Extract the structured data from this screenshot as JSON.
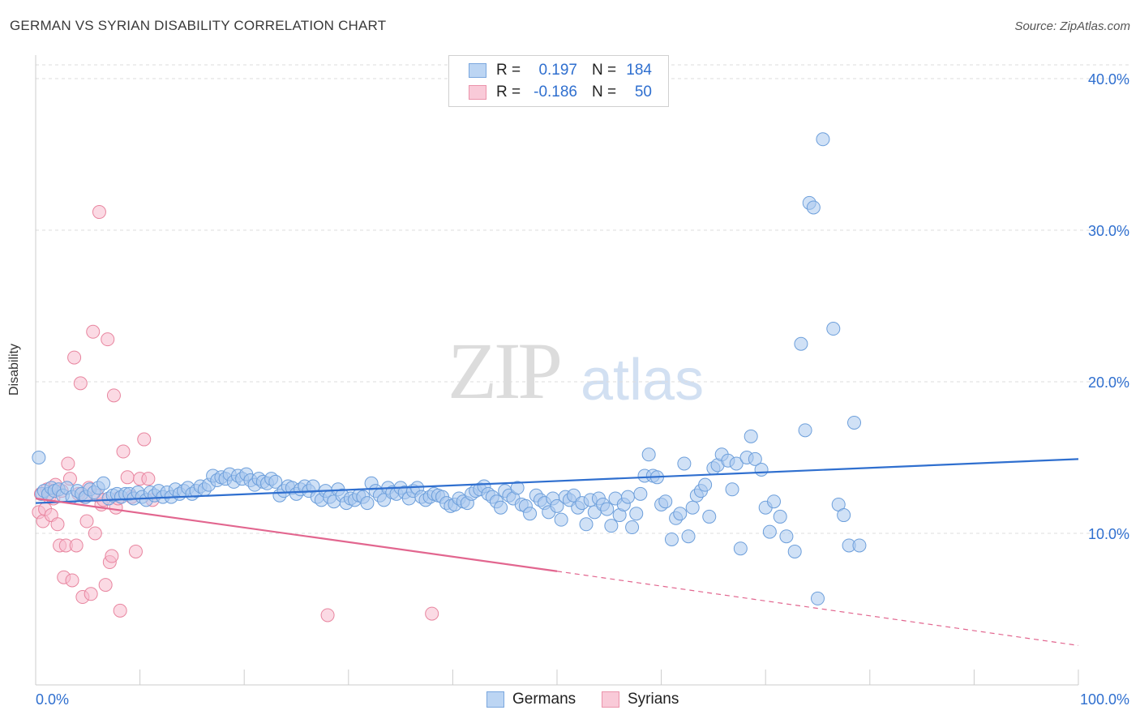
{
  "chart_data": {
    "type": "scatter",
    "title": "GERMAN VS SYRIAN DISABILITY CORRELATION CHART",
    "source": "Source: ZipAtlas.com",
    "ylabel": "Disability",
    "xlim": [
      0,
      100
    ],
    "ylim": [
      0,
      40
    ],
    "x_tick_labels": [
      "0.0%",
      "100.0%"
    ],
    "y_ticks": [
      10,
      20,
      30,
      40
    ],
    "y_tick_labels": [
      "10.0%",
      "20.0%",
      "30.0%",
      "40.0%"
    ],
    "grid": "horizontal dashed",
    "legend_position": "top-center",
    "colors": {
      "germans_fill": "#a9c8ee",
      "germans_stroke": "#6d9fdb",
      "germans_line": "#2f6fcf",
      "syrians_fill": "#f7bccd",
      "syrians_stroke": "#e8859f",
      "syrians_line": "#e2668f"
    },
    "series": [
      {
        "name": "Germans",
        "r_label": "R =",
        "r": "0.197",
        "n_label": "N =",
        "n": "184",
        "trend": {
          "x0": 0,
          "y0": 12.0,
          "x1": 100,
          "y1": 14.9
        },
        "points": [
          [
            0.3,
            15.0
          ],
          [
            0.6,
            12.6
          ],
          [
            0.8,
            12.8
          ],
          [
            1.2,
            12.6
          ],
          [
            1.5,
            13.0
          ],
          [
            1.8,
            12.8
          ],
          [
            2.2,
            12.9
          ],
          [
            2.6,
            12.5
          ],
          [
            3.0,
            13.0
          ],
          [
            3.5,
            12.4
          ],
          [
            4.0,
            12.8
          ],
          [
            4.4,
            12.6
          ],
          [
            4.8,
            12.4
          ],
          [
            5.2,
            12.9
          ],
          [
            5.6,
            12.7
          ],
          [
            6.0,
            13.0
          ],
          [
            6.5,
            13.3
          ],
          [
            7.0,
            12.3
          ],
          [
            7.4,
            12.5
          ],
          [
            7.8,
            12.6
          ],
          [
            8.2,
            12.4
          ],
          [
            8.6,
            12.6
          ],
          [
            9.0,
            12.6
          ],
          [
            9.4,
            12.3
          ],
          [
            9.8,
            12.7
          ],
          [
            10.2,
            12.4
          ],
          [
            10.6,
            12.2
          ],
          [
            11.0,
            12.7
          ],
          [
            11.4,
            12.5
          ],
          [
            11.8,
            12.8
          ],
          [
            12.2,
            12.4
          ],
          [
            12.6,
            12.7
          ],
          [
            13.0,
            12.4
          ],
          [
            13.4,
            12.9
          ],
          [
            13.8,
            12.6
          ],
          [
            14.2,
            12.8
          ],
          [
            14.6,
            13.0
          ],
          [
            15.0,
            12.6
          ],
          [
            15.4,
            12.8
          ],
          [
            15.8,
            13.1
          ],
          [
            16.2,
            12.9
          ],
          [
            16.6,
            13.2
          ],
          [
            17.0,
            13.8
          ],
          [
            17.4,
            13.5
          ],
          [
            17.8,
            13.7
          ],
          [
            18.2,
            13.6
          ],
          [
            18.6,
            13.9
          ],
          [
            19.0,
            13.4
          ],
          [
            19.4,
            13.8
          ],
          [
            19.8,
            13.6
          ],
          [
            20.2,
            13.9
          ],
          [
            20.6,
            13.5
          ],
          [
            21.0,
            13.2
          ],
          [
            21.4,
            13.6
          ],
          [
            21.8,
            13.4
          ],
          [
            22.2,
            13.3
          ],
          [
            22.6,
            13.6
          ],
          [
            23.0,
            13.4
          ],
          [
            23.4,
            12.5
          ],
          [
            23.8,
            12.8
          ],
          [
            24.2,
            13.1
          ],
          [
            24.6,
            13.0
          ],
          [
            25.0,
            12.6
          ],
          [
            25.4,
            12.9
          ],
          [
            25.8,
            13.1
          ],
          [
            26.2,
            12.8
          ],
          [
            26.6,
            13.1
          ],
          [
            27.0,
            12.4
          ],
          [
            27.4,
            12.2
          ],
          [
            27.8,
            12.8
          ],
          [
            28.2,
            12.4
          ],
          [
            28.6,
            12.1
          ],
          [
            29.0,
            12.9
          ],
          [
            29.4,
            12.5
          ],
          [
            29.8,
            12.0
          ],
          [
            30.2,
            12.3
          ],
          [
            30.6,
            12.2
          ],
          [
            31.0,
            12.5
          ],
          [
            31.4,
            12.4
          ],
          [
            31.8,
            12.0
          ],
          [
            32.2,
            13.3
          ],
          [
            32.6,
            12.8
          ],
          [
            33.0,
            12.5
          ],
          [
            33.4,
            12.2
          ],
          [
            33.8,
            13.0
          ],
          [
            34.2,
            12.7
          ],
          [
            34.6,
            12.6
          ],
          [
            35.0,
            13.0
          ],
          [
            35.4,
            12.7
          ],
          [
            35.8,
            12.3
          ],
          [
            36.2,
            12.8
          ],
          [
            36.6,
            13.0
          ],
          [
            37.0,
            12.4
          ],
          [
            37.4,
            12.2
          ],
          [
            37.8,
            12.4
          ],
          [
            38.2,
            12.6
          ],
          [
            38.6,
            12.5
          ],
          [
            39.0,
            12.4
          ],
          [
            39.4,
            12.0
          ],
          [
            39.8,
            11.8
          ],
          [
            40.2,
            11.9
          ],
          [
            40.6,
            12.3
          ],
          [
            41.0,
            12.1
          ],
          [
            41.4,
            12.0
          ],
          [
            41.8,
            12.6
          ],
          [
            42.2,
            12.8
          ],
          [
            42.6,
            12.9
          ],
          [
            43.0,
            13.1
          ],
          [
            43.4,
            12.6
          ],
          [
            43.8,
            12.4
          ],
          [
            44.2,
            12.1
          ],
          [
            44.6,
            11.7
          ],
          [
            45.0,
            12.8
          ],
          [
            45.4,
            12.5
          ],
          [
            45.8,
            12.3
          ],
          [
            46.2,
            13.0
          ],
          [
            46.6,
            11.9
          ],
          [
            47.0,
            11.8
          ],
          [
            47.4,
            11.3
          ],
          [
            48.0,
            12.5
          ],
          [
            48.4,
            12.2
          ],
          [
            48.8,
            12.0
          ],
          [
            49.2,
            11.4
          ],
          [
            49.6,
            12.3
          ],
          [
            50.0,
            11.8
          ],
          [
            50.4,
            10.9
          ],
          [
            50.8,
            12.4
          ],
          [
            51.2,
            12.2
          ],
          [
            51.6,
            12.5
          ],
          [
            52.0,
            11.7
          ],
          [
            52.4,
            12.0
          ],
          [
            52.8,
            10.6
          ],
          [
            53.2,
            12.2
          ],
          [
            53.6,
            11.4
          ],
          [
            54.0,
            12.3
          ],
          [
            54.4,
            11.9
          ],
          [
            54.8,
            11.6
          ],
          [
            55.2,
            10.5
          ],
          [
            55.6,
            12.3
          ],
          [
            56.0,
            11.2
          ],
          [
            56.4,
            11.9
          ],
          [
            56.8,
            12.4
          ],
          [
            57.2,
            10.4
          ],
          [
            57.6,
            11.3
          ],
          [
            58.0,
            12.6
          ],
          [
            58.4,
            13.8
          ],
          [
            58.8,
            15.2
          ],
          [
            59.2,
            13.8
          ],
          [
            59.6,
            13.7
          ],
          [
            60.0,
            11.9
          ],
          [
            60.4,
            12.1
          ],
          [
            61.0,
            9.6
          ],
          [
            61.4,
            11.0
          ],
          [
            61.8,
            11.3
          ],
          [
            62.2,
            14.6
          ],
          [
            62.6,
            9.8
          ],
          [
            63.0,
            11.7
          ],
          [
            63.4,
            12.5
          ],
          [
            63.8,
            12.8
          ],
          [
            64.2,
            13.2
          ],
          [
            64.6,
            11.1
          ],
          [
            65.0,
            14.3
          ],
          [
            65.4,
            14.5
          ],
          [
            65.8,
            15.2
          ],
          [
            66.4,
            14.8
          ],
          [
            66.8,
            12.9
          ],
          [
            67.2,
            14.6
          ],
          [
            67.6,
            9.0
          ],
          [
            68.2,
            15.0
          ],
          [
            68.6,
            16.4
          ],
          [
            69.0,
            14.9
          ],
          [
            69.6,
            14.2
          ],
          [
            70.0,
            11.7
          ],
          [
            70.4,
            10.1
          ],
          [
            70.8,
            12.1
          ],
          [
            71.4,
            11.1
          ],
          [
            72.0,
            9.8
          ],
          [
            72.8,
            8.8
          ],
          [
            73.4,
            22.5
          ],
          [
            73.8,
            16.8
          ],
          [
            74.2,
            31.8
          ],
          [
            74.6,
            31.5
          ],
          [
            75.0,
            5.7
          ],
          [
            75.5,
            36.0
          ],
          [
            76.5,
            23.5
          ],
          [
            77.0,
            11.9
          ],
          [
            77.5,
            11.2
          ],
          [
            78.0,
            9.2
          ],
          [
            78.5,
            17.3
          ],
          [
            79.0,
            9.2
          ]
        ]
      },
      {
        "name": "Syrians",
        "r_label": "R =",
        "r": "-0.186",
        "n_label": "N =",
        "n": "50",
        "trend": {
          "x0": 0,
          "y0": 12.3,
          "x1": 50,
          "y1": 7.5
        },
        "trend_dashed": {
          "x0": 50,
          "y0": 7.5,
          "x1": 100,
          "y1": 2.6
        },
        "points": [
          [
            0.3,
            11.4
          ],
          [
            0.5,
            12.6
          ],
          [
            0.7,
            10.8
          ],
          [
            0.9,
            11.6
          ],
          [
            1.1,
            12.9
          ],
          [
            1.3,
            12.4
          ],
          [
            1.5,
            11.2
          ],
          [
            1.7,
            12.3
          ],
          [
            1.9,
            13.2
          ],
          [
            2.1,
            10.6
          ],
          [
            2.3,
            9.2
          ],
          [
            2.5,
            12.8
          ],
          [
            2.7,
            7.1
          ],
          [
            2.9,
            9.2
          ],
          [
            3.1,
            14.6
          ],
          [
            3.3,
            13.6
          ],
          [
            3.5,
            6.9
          ],
          [
            3.7,
            21.6
          ],
          [
            3.9,
            9.2
          ],
          [
            4.1,
            12.6
          ],
          [
            4.3,
            19.9
          ],
          [
            4.5,
            5.8
          ],
          [
            4.7,
            12.4
          ],
          [
            4.9,
            10.8
          ],
          [
            5.1,
            13.0
          ],
          [
            5.3,
            6.0
          ],
          [
            5.5,
            23.3
          ],
          [
            5.7,
            10.0
          ],
          [
            5.9,
            12.5
          ],
          [
            6.1,
            31.2
          ],
          [
            6.3,
            11.9
          ],
          [
            6.5,
            12.2
          ],
          [
            6.7,
            6.6
          ],
          [
            6.9,
            22.8
          ],
          [
            7.1,
            8.1
          ],
          [
            7.3,
            8.5
          ],
          [
            7.5,
            19.1
          ],
          [
            7.7,
            11.7
          ],
          [
            7.9,
            12.3
          ],
          [
            8.1,
            4.9
          ],
          [
            8.4,
            15.4
          ],
          [
            8.8,
            13.7
          ],
          [
            9.2,
            12.4
          ],
          [
            9.6,
            8.8
          ],
          [
            10.0,
            13.6
          ],
          [
            10.4,
            16.2
          ],
          [
            10.8,
            13.6
          ],
          [
            11.2,
            12.2
          ],
          [
            28.0,
            4.6
          ],
          [
            38.0,
            4.7
          ]
        ]
      }
    ]
  },
  "legend": {
    "bottom_labels": [
      "Germans",
      "Syrians"
    ]
  },
  "watermark": {
    "part1": "ZIP",
    "part2": "atlas"
  }
}
